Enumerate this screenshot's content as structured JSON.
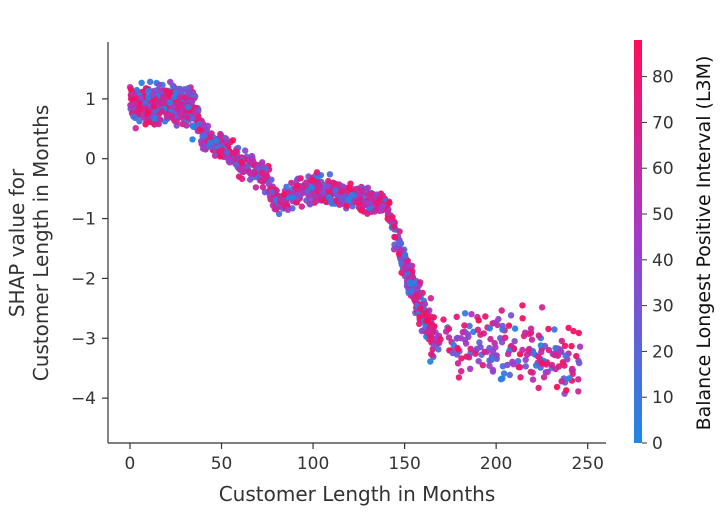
{
  "chart_data": {
    "type": "scatter",
    "title": "",
    "xlabel": "Customer Length in Months",
    "ylabel_line1": "SHAP value for",
    "ylabel_line2": "Customer Length in Months",
    "xlim": [
      -12,
      260
    ],
    "ylim": [
      -4.75,
      1.95
    ],
    "x_ticks": [
      0,
      50,
      100,
      150,
      200,
      250
    ],
    "x_tick_labels": [
      "0",
      "50",
      "100",
      "150",
      "200",
      "250"
    ],
    "y_ticks": [
      1,
      0,
      -1,
      -2,
      -3,
      -4
    ],
    "y_tick_labels": [
      "1",
      "0",
      "−1",
      "−2",
      "−3",
      "−4"
    ],
    "grid": false,
    "colorbar": {
      "label": "Balance Longest Positive Interval (L3M)",
      "min": 0,
      "max": 88,
      "ticks": [
        0,
        10,
        20,
        30,
        40,
        50,
        60,
        70,
        80
      ],
      "tick_labels": [
        "0",
        "10",
        "20",
        "30",
        "40",
        "50",
        "60",
        "70",
        "80"
      ],
      "color_low": "#1e88e5",
      "color_high": "#ff0d57"
    },
    "trend": [
      {
        "x": 0,
        "y": 0.95,
        "spread": 0.3
      },
      {
        "x": 35,
        "y": 0.85,
        "spread": 0.35
      },
      {
        "x": 40,
        "y": 0.35,
        "spread": 0.2
      },
      {
        "x": 75,
        "y": -0.3,
        "spread": 0.25
      },
      {
        "x": 80,
        "y": -0.7,
        "spread": 0.2
      },
      {
        "x": 100,
        "y": -0.5,
        "spread": 0.25
      },
      {
        "x": 140,
        "y": -0.75,
        "spread": 0.2
      },
      {
        "x": 145,
        "y": -1.3,
        "spread": 0.3
      },
      {
        "x": 155,
        "y": -2.2,
        "spread": 0.3
      },
      {
        "x": 165,
        "y": -2.9,
        "spread": 0.4
      },
      {
        "x": 200,
        "y": -3.2,
        "spread": 0.55
      },
      {
        "x": 246,
        "y": -3.3,
        "spread": 0.6
      }
    ]
  }
}
